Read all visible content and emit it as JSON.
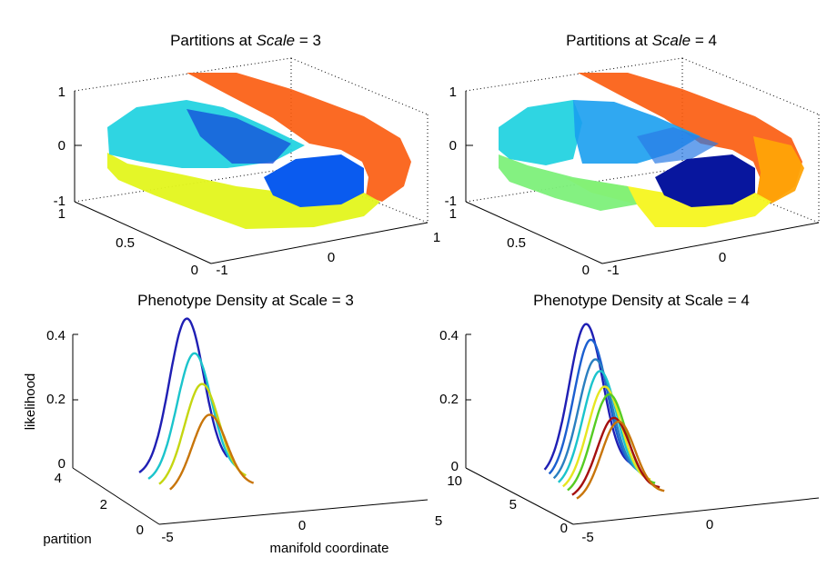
{
  "chart_data": [
    {
      "type": "scatter",
      "title_prefix": "Partitions at ",
      "title_var": "Scale",
      "title_suffix": " = 3",
      "z_ticks": [
        "1",
        "0",
        "-1"
      ],
      "y_ticks": [
        "1",
        "0.5",
        "0"
      ],
      "x_ticks": [
        "-1",
        "0",
        "1"
      ],
      "partition_colors": [
        "#0A5BEF",
        "#E3F51C",
        "#24D3E0",
        "#FB5A0C",
        "#1448D9"
      ]
    },
    {
      "type": "scatter",
      "title_prefix": "Partitions at ",
      "title_var": "Scale",
      "title_suffix": " = 4",
      "z_ticks": [
        "1",
        "0",
        "-1"
      ],
      "y_ticks": [
        "1",
        "0.5",
        "0"
      ],
      "x_ticks": [
        "-1",
        "0"
      ],
      "partition_colors": [
        "#08169E",
        "#FFA407",
        "#1A9FF0",
        "#24D3E0",
        "#F5F51F",
        "#7DF07A",
        "#FB5A0C",
        "#2A7BE5"
      ]
    },
    {
      "type": "line",
      "title": "Phenotype Density at Scale = 3",
      "zlabel": "likelihood",
      "ylabel": "partition",
      "xlabel": "manifold coordinate",
      "z_ticks": [
        "0.4",
        "0.2",
        "0"
      ],
      "y_ticks": [
        "4",
        "2",
        "0"
      ],
      "x_ticks": [
        "-5",
        "0",
        "5"
      ],
      "zlim": [
        0,
        0.4
      ],
      "ylim": [
        0,
        4
      ],
      "xlim": [
        -5,
        5
      ],
      "series": [
        {
          "partition": 1,
          "mean": -1.3,
          "sd": 1.05,
          "peak": 0.19,
          "x_range": [
            -3.7,
            1.4
          ],
          "color": "#C8750A"
        },
        {
          "partition": 2,
          "mean": -1.4,
          "sd": 1.05,
          "peak": 0.25,
          "x_range": [
            -4.0,
            1.3
          ],
          "color": "#C5D611"
        },
        {
          "partition": 3,
          "mean": -1.5,
          "sd": 1.05,
          "peak": 0.31,
          "x_range": [
            -4.3,
            1.1
          ],
          "color": "#1BC4CC"
        },
        {
          "partition": 4,
          "mean": -1.6,
          "sd": 1.05,
          "peak": 0.38,
          "x_range": [
            -4.5,
            0.9
          ],
          "color": "#1F1FB4"
        }
      ]
    },
    {
      "type": "line",
      "title": "Phenotype Density at Scale = 4",
      "z_ticks": [
        "0.4",
        "0.2",
        "0"
      ],
      "y_ticks": [
        "10",
        "5",
        "0"
      ],
      "x_ticks": [
        "-5",
        "0"
      ],
      "zlim": [
        0,
        0.4
      ],
      "ylim": [
        0,
        10
      ],
      "xlim": [
        -5,
        5
      ],
      "series": [
        {
          "partition": 1,
          "mean": -1.7,
          "sd": 1.05,
          "peak": 0.19,
          "x_range": [
            -4.3,
            1.2
          ],
          "color": "#C8750A"
        },
        {
          "partition": 2,
          "mean": -1.8,
          "sd": 1.05,
          "peak": 0.19,
          "x_range": [
            -4.4,
            1.1
          ],
          "color": "#A50F0F"
        },
        {
          "partition": 3,
          "mean": -1.9,
          "sd": 1.05,
          "peak": 0.24,
          "x_range": [
            -4.5,
            1.0
          ],
          "color": "#55CC22"
        },
        {
          "partition": 4,
          "mean": -2.0,
          "sd": 1.05,
          "peak": 0.25,
          "x_range": [
            -4.6,
            0.9
          ],
          "color": "#E6E620"
        },
        {
          "partition": 5,
          "mean": -2.1,
          "sd": 1.05,
          "peak": 0.28,
          "x_range": [
            -4.7,
            0.8
          ],
          "color": "#1BC4CC"
        },
        {
          "partition": 6,
          "mean": -2.2,
          "sd": 1.05,
          "peak": 0.3,
          "x_range": [
            -4.8,
            0.7
          ],
          "color": "#2A7FC0"
        },
        {
          "partition": 7,
          "mean": -2.3,
          "sd": 1.05,
          "peak": 0.34,
          "x_range": [
            -4.9,
            0.6
          ],
          "color": "#1B5FD0"
        },
        {
          "partition": 8,
          "mean": -2.4,
          "sd": 1.05,
          "peak": 0.37,
          "x_range": [
            -5.0,
            0.5
          ],
          "color": "#1F1FB4"
        }
      ]
    }
  ]
}
